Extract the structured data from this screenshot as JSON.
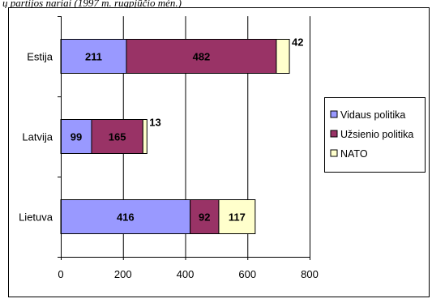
{
  "caption": "ų partijos nariai (1997 m. rugpjūčio mėn.)",
  "chart_data": {
    "type": "bar",
    "orientation": "horizontal",
    "stacked": true,
    "categories": [
      "Lietuva",
      "Latvija",
      "Estija"
    ],
    "series": [
      {
        "name": "Vidaus politika",
        "color": "#9999ff",
        "values": [
          416,
          99,
          211
        ]
      },
      {
        "name": "Užsienio politika",
        "color": "#993366",
        "values": [
          92,
          165,
          482
        ]
      },
      {
        "name": "NATO",
        "color": "#ffffcc",
        "values": [
          117,
          13,
          42
        ]
      }
    ],
    "xlim": [
      0,
      800
    ],
    "xticks": [
      0,
      200,
      400,
      600,
      800
    ],
    "grid": "vertical",
    "legend_position": "right"
  }
}
